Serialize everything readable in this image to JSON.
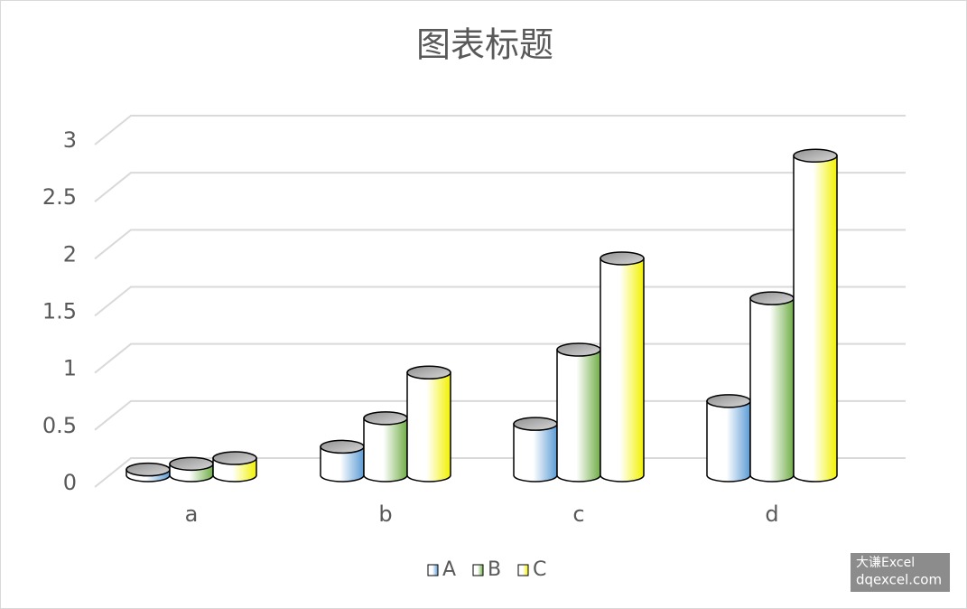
{
  "chart_data": {
    "type": "bar3d",
    "title": "图表标题",
    "categories": [
      "a",
      "b",
      "c",
      "d"
    ],
    "series": [
      {
        "name": "A",
        "color": "#5b9bd5",
        "values": [
          0.05,
          0.25,
          0.45,
          0.65
        ]
      },
      {
        "name": "B",
        "color": "#70ad47",
        "values": [
          0.1,
          0.5,
          1.1,
          1.55
        ]
      },
      {
        "name": "C",
        "color": "#f2f200",
        "values": [
          0.15,
          0.9,
          1.9,
          2.8
        ]
      }
    ],
    "ylim": [
      0,
      3
    ],
    "yticks": [
      0,
      0.5,
      1,
      1.5,
      2,
      2.5,
      3
    ],
    "grid": true,
    "legend": "bottom"
  },
  "watermark": {
    "line1": "大谦Excel",
    "line2": "dqexcel.com"
  }
}
